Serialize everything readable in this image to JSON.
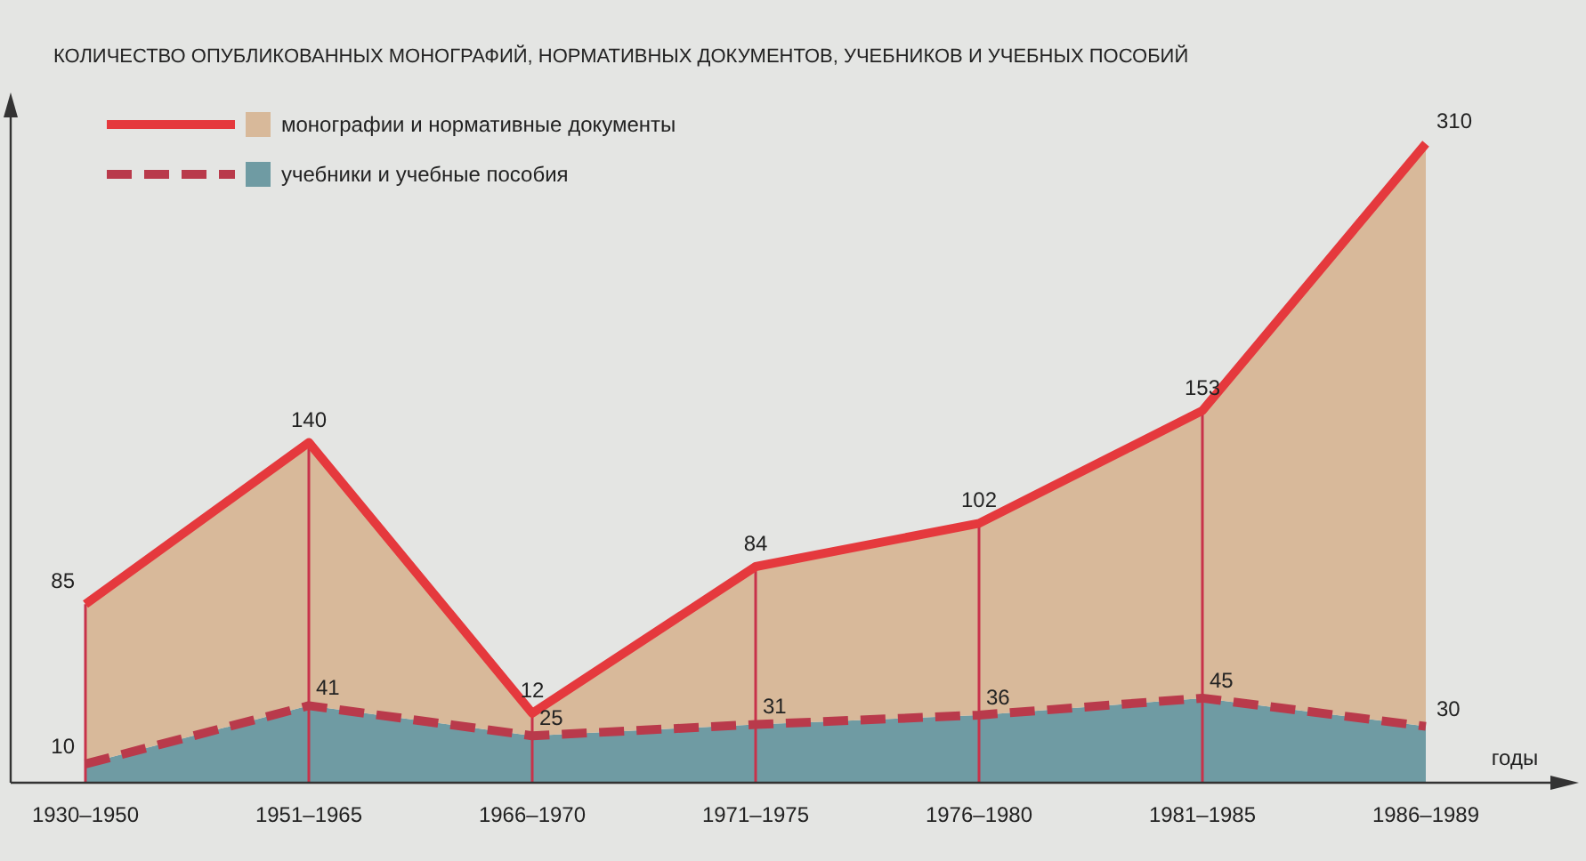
{
  "chart_data": {
    "type": "area",
    "stacked": true,
    "title": "КОЛИЧЕСТВО ОПУБЛИКОВАННЫХ МОНОГРАФИЙ, НОРМАТИВНЫХ ДОКУМЕНТОВ, УЧЕБНИКОВ И УЧЕБНЫХ ПОСОБИЙ",
    "xlabel": "годы",
    "categories": [
      "1930–1950",
      "1951–1965",
      "1966–1970",
      "1971–1975",
      "1976–1980",
      "1981–1985",
      "1986–1989"
    ],
    "series": [
      {
        "name": "учебники и учебные пособия",
        "color": "#6f9ba3",
        "line_style": "dashed",
        "values": [
          10,
          41,
          25,
          31,
          36,
          45,
          30
        ]
      },
      {
        "name": "монографии и нормативные документы",
        "color": "#d8b99a",
        "line_style": "solid",
        "values": [
          85,
          140,
          12,
          84,
          102,
          153,
          310
        ]
      }
    ],
    "data_labels": true,
    "legend": "top left"
  }
}
